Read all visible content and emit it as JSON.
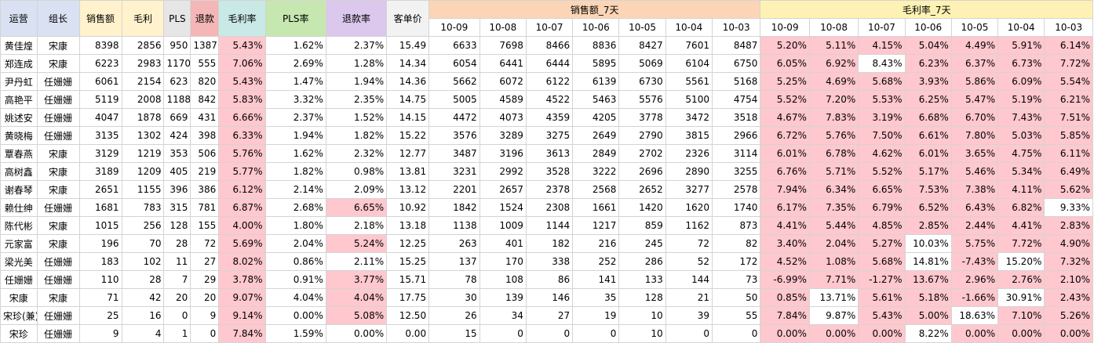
{
  "headers": {
    "fixed": [
      {
        "label": "运营",
        "color": "#d9e1f2"
      },
      {
        "label": "组长",
        "color": "#d9e1f2"
      },
      {
        "label": "销售额",
        "color": "#fff2cc"
      },
      {
        "label": "毛利",
        "color": "#fff2cc"
      },
      {
        "label": "PLS",
        "color": "#e7e6e6"
      },
      {
        "label": "退款",
        "color": "#f4b6b6"
      },
      {
        "label": "毛利率",
        "color": "#c9e9e6"
      },
      {
        "label": "PLS率",
        "color": "#c6e7b0"
      },
      {
        "label": "退款率",
        "color": "#dcc8ec"
      },
      {
        "label": "客单价",
        "color": "#f2f2f2"
      }
    ],
    "group_sales": {
      "label": "销售额_7天",
      "color": "#fbd5b5"
    },
    "group_margin": {
      "label": "毛利率_7天",
      "color": "#fdf2b3"
    },
    "dates": [
      "10-09",
      "10-08",
      "10-07",
      "10-06",
      "10-05",
      "10-04",
      "10-03"
    ]
  },
  "rows": [
    {
      "cells": [
        "黄佳煌",
        "宋康",
        "8398",
        "2856",
        "950",
        "1387",
        "5.43%",
        "1.62%",
        "2.37%",
        "15.49"
      ],
      "sales": [
        "6633",
        "7698",
        "8466",
        "8836",
        "8427",
        "7601",
        "8487"
      ],
      "margin": [
        "5.20%",
        "5.11%",
        "4.15%",
        "5.04%",
        "4.49%",
        "5.91%",
        "6.14%"
      ],
      "whiteMargins": [],
      "refundPink": false
    },
    {
      "cells": [
        "郑连成",
        "宋康",
        "6223",
        "2983",
        "1170",
        "555",
        "7.06%",
        "2.69%",
        "1.28%",
        "14.34"
      ],
      "sales": [
        "6054",
        "6441",
        "6444",
        "5895",
        "5069",
        "6104",
        "6750"
      ],
      "margin": [
        "6.05%",
        "6.92%",
        "8.43%",
        "6.23%",
        "6.37%",
        "6.73%",
        "7.72%"
      ],
      "whiteMargins": [
        2
      ],
      "refundPink": false
    },
    {
      "cells": [
        "尹丹虹",
        "任姗姗",
        "6061",
        "2154",
        "623",
        "820",
        "5.43%",
        "1.47%",
        "1.94%",
        "14.36"
      ],
      "sales": [
        "5662",
        "6072",
        "6122",
        "6139",
        "6730",
        "5561",
        "5168"
      ],
      "margin": [
        "5.25%",
        "4.69%",
        "5.68%",
        "3.93%",
        "5.86%",
        "6.09%",
        "5.54%"
      ],
      "whiteMargins": [],
      "refundPink": false
    },
    {
      "cells": [
        "高艳平",
        "任姗姗",
        "5119",
        "2008",
        "1188",
        "842",
        "5.83%",
        "3.32%",
        "2.35%",
        "14.75"
      ],
      "sales": [
        "5005",
        "4589",
        "4522",
        "5463",
        "5576",
        "5100",
        "4754"
      ],
      "margin": [
        "5.52%",
        "7.20%",
        "5.53%",
        "6.25%",
        "5.47%",
        "5.19%",
        "6.21%"
      ],
      "whiteMargins": [],
      "refundPink": false
    },
    {
      "cells": [
        "姚述安",
        "任姗姗",
        "4047",
        "1878",
        "669",
        "431",
        "6.66%",
        "2.37%",
        "1.52%",
        "14.15"
      ],
      "sales": [
        "4472",
        "4073",
        "4359",
        "4205",
        "3778",
        "3472",
        "3518"
      ],
      "margin": [
        "4.67%",
        "7.83%",
        "3.19%",
        "6.68%",
        "6.70%",
        "7.43%",
        "7.51%"
      ],
      "whiteMargins": [],
      "refundPink": false
    },
    {
      "cells": [
        "黄晓梅",
        "任姗姗",
        "3135",
        "1302",
        "424",
        "398",
        "6.33%",
        "1.94%",
        "1.82%",
        "15.22"
      ],
      "sales": [
        "3576",
        "3289",
        "3275",
        "2649",
        "2790",
        "3815",
        "2966"
      ],
      "margin": [
        "6.72%",
        "5.76%",
        "7.50%",
        "6.61%",
        "7.80%",
        "5.03%",
        "5.85%"
      ],
      "whiteMargins": [],
      "refundPink": false
    },
    {
      "cells": [
        "覃春燕",
        "宋康",
        "3129",
        "1219",
        "353",
        "506",
        "5.76%",
        "1.62%",
        "2.32%",
        "12.77"
      ],
      "sales": [
        "3487",
        "3196",
        "3613",
        "2849",
        "2702",
        "2326",
        "3114"
      ],
      "margin": [
        "6.01%",
        "6.78%",
        "4.62%",
        "6.01%",
        "3.65%",
        "4.75%",
        "6.11%"
      ],
      "whiteMargins": [],
      "refundPink": false
    },
    {
      "cells": [
        "高树鑫",
        "宋康",
        "3189",
        "1209",
        "405",
        "219",
        "5.77%",
        "1.82%",
        "0.98%",
        "13.81"
      ],
      "sales": [
        "3231",
        "2992",
        "3528",
        "3222",
        "2696",
        "2890",
        "3255"
      ],
      "margin": [
        "6.76%",
        "5.71%",
        "5.52%",
        "5.17%",
        "5.46%",
        "5.34%",
        "6.49%"
      ],
      "whiteMargins": [],
      "refundPink": false
    },
    {
      "cells": [
        "谢春琴",
        "宋康",
        "2651",
        "1155",
        "396",
        "386",
        "6.12%",
        "2.14%",
        "2.09%",
        "13.12"
      ],
      "sales": [
        "2201",
        "2657",
        "2378",
        "2568",
        "2652",
        "3277",
        "2578"
      ],
      "margin": [
        "7.94%",
        "6.34%",
        "6.65%",
        "7.53%",
        "7.38%",
        "4.11%",
        "5.62%"
      ],
      "whiteMargins": [],
      "refundPink": false
    },
    {
      "cells": [
        "赖仕绅",
        "任姗姗",
        "1681",
        "783",
        "315",
        "781",
        "6.87%",
        "2.68%",
        "6.65%",
        "10.92"
      ],
      "sales": [
        "1842",
        "1524",
        "2308",
        "1661",
        "1420",
        "1620",
        "1740"
      ],
      "margin": [
        "6.17%",
        "7.35%",
        "6.79%",
        "6.52%",
        "6.43%",
        "6.82%",
        "9.33%"
      ],
      "whiteMargins": [
        6
      ],
      "refundPink": true
    },
    {
      "cells": [
        "陈代彬",
        "宋康",
        "1015",
        "256",
        "128",
        "155",
        "4.00%",
        "1.80%",
        "2.18%",
        "13.18"
      ],
      "sales": [
        "1138",
        "1009",
        "1144",
        "1217",
        "859",
        "1162",
        "873"
      ],
      "margin": [
        "4.41%",
        "5.44%",
        "4.85%",
        "2.85%",
        "2.44%",
        "4.41%",
        "2.83%"
      ],
      "whiteMargins": [],
      "refundPink": false
    },
    {
      "cells": [
        "元家富",
        "宋康",
        "196",
        "70",
        "28",
        "72",
        "5.69%",
        "2.04%",
        "5.24%",
        "12.25"
      ],
      "sales": [
        "263",
        "401",
        "182",
        "216",
        "245",
        "72",
        "82"
      ],
      "margin": [
        "3.40%",
        "2.04%",
        "5.27%",
        "10.03%",
        "5.75%",
        "7.72%",
        "4.90%"
      ],
      "whiteMargins": [
        3
      ],
      "refundPink": true
    },
    {
      "cells": [
        "梁光美",
        "任姗姗",
        "183",
        "102",
        "11",
        "27",
        "8.02%",
        "0.86%",
        "2.11%",
        "15.25"
      ],
      "sales": [
        "137",
        "170",
        "338",
        "252",
        "286",
        "52",
        "172"
      ],
      "margin": [
        "4.52%",
        "1.08%",
        "5.68%",
        "14.81%",
        "-7.43%",
        "15.20%",
        "7.32%"
      ],
      "whiteMargins": [
        3,
        5
      ],
      "refundPink": false
    },
    {
      "cells": [
        "任姗姗",
        "任姗姗",
        "110",
        "28",
        "7",
        "29",
        "3.78%",
        "0.91%",
        "3.77%",
        "15.71"
      ],
      "sales": [
        "78",
        "108",
        "86",
        "141",
        "133",
        "144",
        "73"
      ],
      "margin": [
        "-6.99%",
        "7.71%",
        "-1.27%",
        "13.67%",
        "2.96%",
        "2.76%",
        "2.10%"
      ],
      "whiteMargins": [],
      "refundPink": true
    },
    {
      "cells": [
        "宋康",
        "宋康",
        "71",
        "42",
        "20",
        "20",
        "9.07%",
        "4.04%",
        "4.04%",
        "17.75"
      ],
      "sales": [
        "30",
        "139",
        "146",
        "35",
        "128",
        "21",
        "50"
      ],
      "margin": [
        "0.85%",
        "13.71%",
        "5.61%",
        "5.18%",
        "-1.66%",
        "30.91%",
        "2.43%"
      ],
      "whiteMargins": [
        1,
        5
      ],
      "refundPink": true
    },
    {
      "cells": [
        "宋珍(兼)",
        "任姗姗",
        "25",
        "16",
        "0",
        "9",
        "9.14%",
        "0.00%",
        "5.08%",
        "12.50"
      ],
      "sales": [
        "26",
        "34",
        "27",
        "19",
        "10",
        "39",
        "55"
      ],
      "margin": [
        "7.84%",
        "9.87%",
        "5.43%",
        "5.00%",
        "18.63%",
        "7.10%",
        "5.26%"
      ],
      "whiteMargins": [
        1,
        4
      ],
      "refundPink": true
    },
    {
      "cells": [
        "宋珍",
        "任姗姗",
        "9",
        "4",
        "1",
        "0",
        "7.84%",
        "1.59%",
        "0.00%",
        "0.00"
      ],
      "sales": [
        "15",
        "0",
        "0",
        "0",
        "10",
        "0",
        "0"
      ],
      "margin": [
        "0.00%",
        "0.00%",
        "0.00%",
        "8.22%",
        "0.00%",
        "0.00%",
        "0.00%"
      ],
      "whiteMargins": [
        3
      ],
      "refundPink": false
    }
  ]
}
